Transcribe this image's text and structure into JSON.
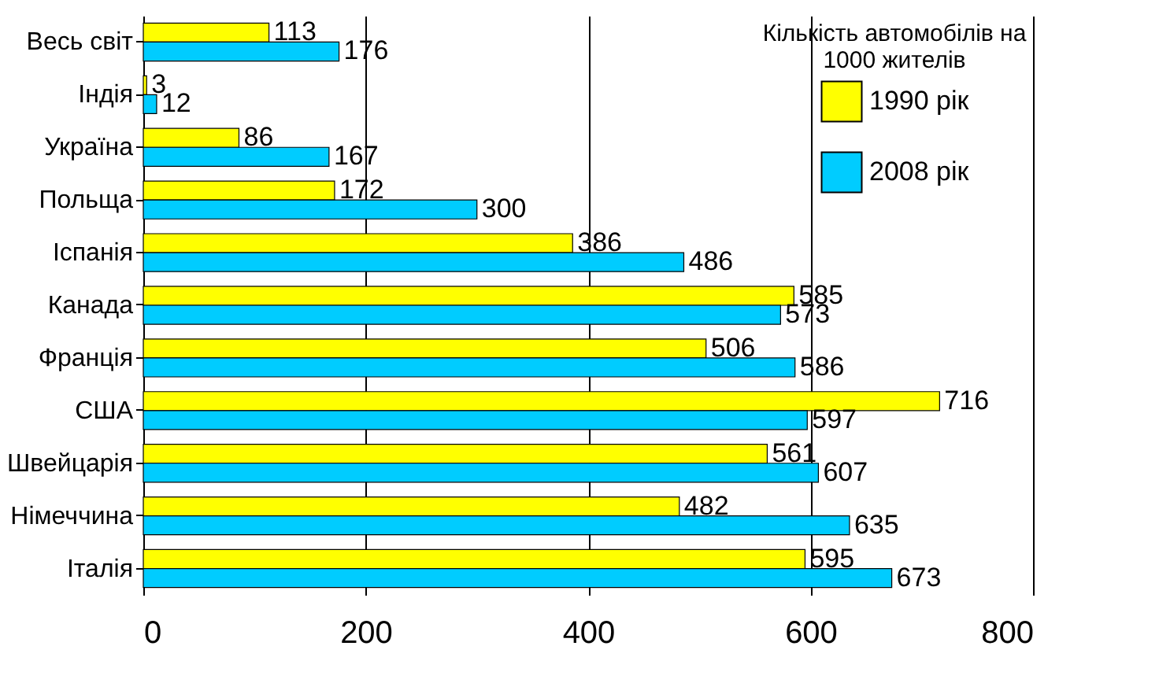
{
  "chart_data": {
    "type": "bar",
    "orientation": "horizontal",
    "legend_title": "Кількість автомобілів на 1000 жителів",
    "categories": [
      "Весь світ",
      "Індія",
      "Україна",
      "Польща",
      "Іспанія",
      "Канада",
      "Франція",
      "США",
      "Швейцарія",
      "Німеччина",
      "Італія"
    ],
    "series": [
      {
        "name": "1990 рік",
        "color": "#ffff00",
        "values": [
          113,
          3,
          86,
          172,
          386,
          585,
          506,
          716,
          561,
          482,
          595
        ]
      },
      {
        "name": "2008 рік",
        "color": "#00ccff",
        "values": [
          176,
          12,
          167,
          300,
          486,
          573,
          586,
          597,
          607,
          635,
          673
        ]
      }
    ],
    "xlim": [
      0,
      800
    ],
    "xticks": [
      0,
      200,
      400,
      600,
      800
    ],
    "grid": "x",
    "data_labels": true,
    "legend": "top right"
  }
}
